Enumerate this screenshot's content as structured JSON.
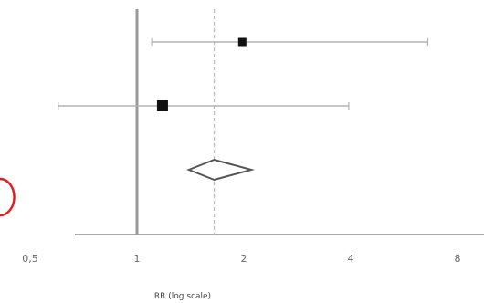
{
  "chart_data": {
    "type": "forest",
    "title": "",
    "xlabel": "RR (log scale)",
    "ylabel": "",
    "x_scale": "log2",
    "xlim": [
      0.5,
      9.5
    ],
    "x_ticks": [
      {
        "value": 0.5,
        "label": "0,5"
      },
      {
        "value": 1,
        "label": "1"
      },
      {
        "value": 2,
        "label": "2"
      },
      {
        "value": 4,
        "label": "4"
      },
      {
        "value": 8,
        "label": "8"
      }
    ],
    "reference_line": 1,
    "pooled_line": 1.65,
    "studies": [
      {
        "estimate": 1.98,
        "lower": 1.1,
        "upper": 6.6,
        "marker": "small"
      },
      {
        "estimate": 1.18,
        "lower": 0.6,
        "upper": 3.95,
        "marker": "large"
      }
    ],
    "pooled": {
      "estimate": 1.65,
      "lower": 1.4,
      "upper": 2.1
    },
    "colors": {
      "axis": "#aaaaaa",
      "reference_line": "#999999",
      "ci_line": "#b3b3b3",
      "marker": "#111111",
      "pooled_line": "#bbbbbb",
      "diamond": "#555555",
      "edge_mark": "#e02020"
    }
  }
}
